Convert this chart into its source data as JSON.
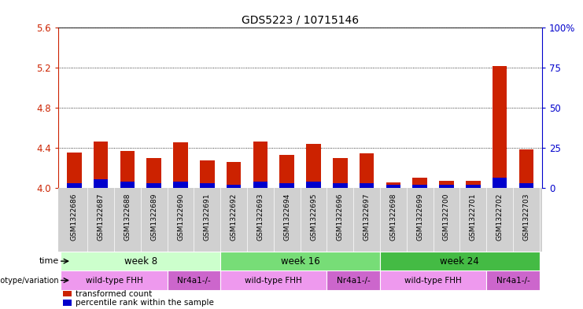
{
  "title": "GDS5223 / 10715146",
  "samples": [
    "GSM1322686",
    "GSM1322687",
    "GSM1322688",
    "GSM1322689",
    "GSM1322690",
    "GSM1322691",
    "GSM1322692",
    "GSM1322693",
    "GSM1322694",
    "GSM1322695",
    "GSM1322696",
    "GSM1322697",
    "GSM1322698",
    "GSM1322699",
    "GSM1322700",
    "GSM1322701",
    "GSM1322702",
    "GSM1322703"
  ],
  "transformed_count": [
    4.35,
    4.46,
    4.37,
    4.3,
    4.45,
    4.27,
    4.26,
    4.46,
    4.33,
    4.44,
    4.3,
    4.34,
    4.05,
    4.1,
    4.07,
    4.07,
    5.22,
    4.38
  ],
  "percentile_rank": [
    3,
    5,
    4,
    3,
    4,
    3,
    2,
    4,
    3,
    4,
    3,
    3,
    2,
    2,
    2,
    2,
    6,
    3
  ],
  "ylim_left": [
    4.0,
    5.6
  ],
  "yticks_left": [
    4.0,
    4.4,
    4.8,
    5.2,
    5.6
  ],
  "ylim_right": [
    0,
    100
  ],
  "yticks_right": [
    0,
    25,
    50,
    75,
    100
  ],
  "yticklabels_right": [
    "0",
    "25",
    "50",
    "75",
    "100%"
  ],
  "bar_color_red": "#cc2200",
  "bar_color_blue": "#0000cc",
  "time_groups": [
    {
      "label": "week 8",
      "start": 0,
      "end": 6,
      "color": "#ccffcc"
    },
    {
      "label": "week 16",
      "start": 6,
      "end": 12,
      "color": "#77dd77"
    },
    {
      "label": "week 24",
      "start": 12,
      "end": 18,
      "color": "#44bb44"
    }
  ],
  "genotype_groups": [
    {
      "label": "wild-type FHH",
      "start": 0,
      "end": 4,
      "color": "#ee99ee"
    },
    {
      "label": "Nr4a1-/-",
      "start": 4,
      "end": 6,
      "color": "#cc66cc"
    },
    {
      "label": "wild-type FHH",
      "start": 6,
      "end": 10,
      "color": "#ee99ee"
    },
    {
      "label": "Nr4a1-/-",
      "start": 10,
      "end": 12,
      "color": "#cc66cc"
    },
    {
      "label": "wild-type FHH",
      "start": 12,
      "end": 16,
      "color": "#ee99ee"
    },
    {
      "label": "Nr4a1-/-",
      "start": 16,
      "end": 18,
      "color": "#cc66cc"
    }
  ],
  "legend_items": [
    {
      "label": "transformed count",
      "color": "#cc2200"
    },
    {
      "label": "percentile rank within the sample",
      "color": "#0000cc"
    }
  ],
  "tick_color_left": "#cc2200",
  "tick_color_right": "#0000cc",
  "sample_label_bg": "#d0d0d0",
  "background_color": "#ffffff"
}
